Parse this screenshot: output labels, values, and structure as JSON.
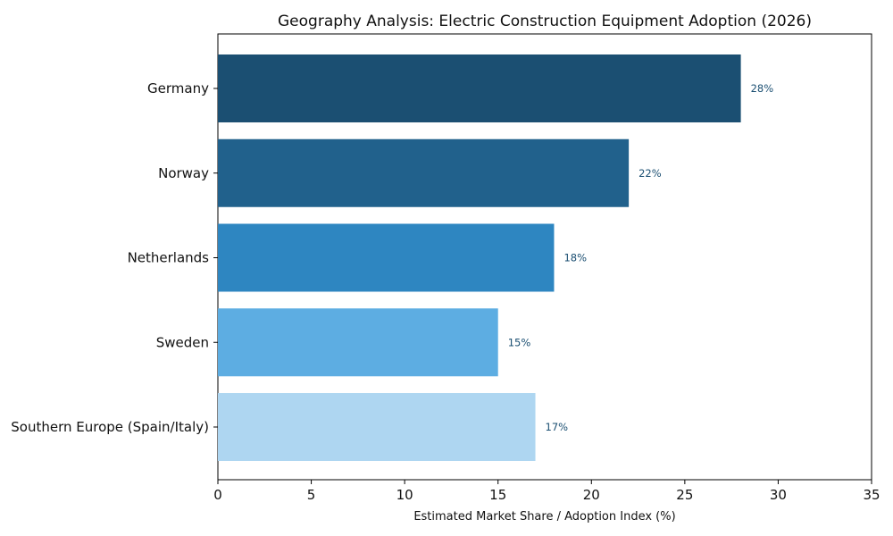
{
  "chart_data": {
    "type": "bar",
    "orientation": "horizontal",
    "title": "Geography Analysis: Electric Construction Equipment Adoption (2026)",
    "xlabel": "Estimated Market Share / Adoption Index (%)",
    "ylabel": "",
    "xlim": [
      0,
      35
    ],
    "xticks": [
      0,
      5,
      10,
      15,
      20,
      25,
      30,
      35
    ],
    "xtick_labels": [
      "0",
      "5",
      "10",
      "15",
      "20",
      "25",
      "30",
      "35"
    ],
    "grid": false,
    "categories": [
      "Germany",
      "Norway",
      "Netherlands",
      "Sweden",
      "Southern Europe (Spain/Italy)"
    ],
    "values": [
      28,
      22,
      18,
      15,
      17
    ],
    "data_labels": [
      "28%",
      "22%",
      "18%",
      "15%",
      "17%"
    ],
    "bar_colors": [
      "#1b4f72",
      "#21618c",
      "#2e86c1",
      "#5dade2",
      "#aed6f1"
    ],
    "data_label_color": "#1b4f72"
  }
}
